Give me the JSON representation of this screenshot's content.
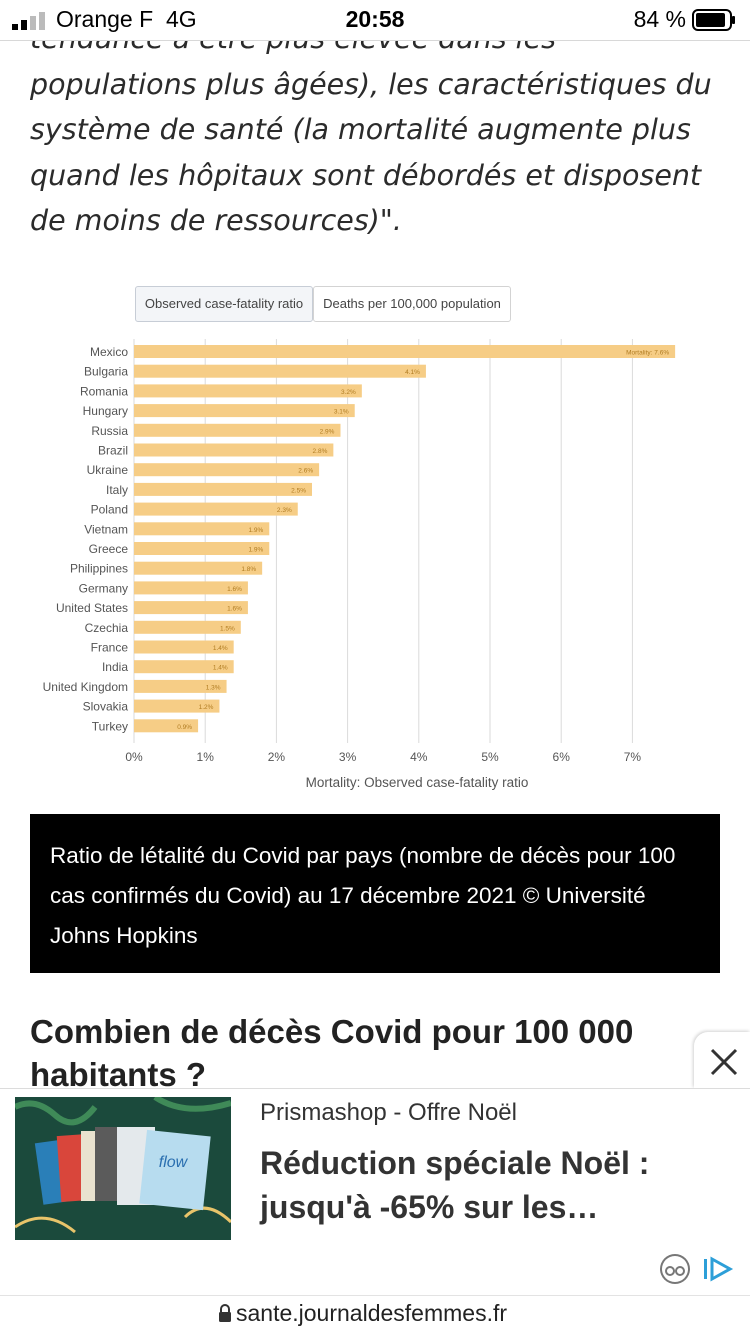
{
  "status_bar": {
    "carrier": "Orange F",
    "network": "4G",
    "time": "20:58",
    "battery": "84 %"
  },
  "article": {
    "lines": [
      "tendance à être plus élevée dans les",
      "populations plus âgées), les caractéristiques du",
      "système de santé (la mortalité augmente plus",
      "quand les hôpitaux sont débordés et disposent",
      "de moins de ressources)\"."
    ]
  },
  "chart_tabs": [
    "Observed case-fatality ratio",
    "Deaths per 100,000 population"
  ],
  "chart_data": {
    "type": "bar",
    "orientation": "horizontal",
    "categories": [
      "Mexico",
      "Bulgaria",
      "Romania",
      "Hungary",
      "Russia",
      "Brazil",
      "Ukraine",
      "Italy",
      "Poland",
      "Vietnam",
      "Greece",
      "Philippines",
      "Germany",
      "United States",
      "Czechia",
      "France",
      "India",
      "United Kingdom",
      "Slovakia",
      "Turkey"
    ],
    "values": [
      7.6,
      4.1,
      3.2,
      3.1,
      2.9,
      2.8,
      2.6,
      2.5,
      2.3,
      1.9,
      1.9,
      1.8,
      1.6,
      1.6,
      1.5,
      1.4,
      1.4,
      1.3,
      1.2,
      0.9
    ],
    "value_labels": [
      "Mortality: 7.6%",
      "4.1%",
      "3.2%",
      "3.1%",
      "2.9%",
      "2.8%",
      "2.6%",
      "2.5%",
      "2.3%",
      "1.9%",
      "1.9%",
      "1.8%",
      "1.6%",
      "1.6%",
      "1.5%",
      "1.4%",
      "1.4%",
      "1.3%",
      "1.2%",
      "0.9%"
    ],
    "xticks": [
      "0%",
      "1%",
      "2%",
      "3%",
      "4%",
      "5%",
      "6%",
      "7%"
    ],
    "xlim": [
      0,
      7.6
    ],
    "xlabel": "Mortality: Observed case-fatality ratio",
    "grid": "vertical",
    "bar_color": "#f6cd86",
    "label_color": "#b07c22"
  },
  "caption": "Ratio de létalité du Covid par pays (nombre de décès pour 100 cas confirmés du Covid) au 17 décembre 2021 © Université Johns Hopkins",
  "section_title": "Combien de décès Covid pour 100 000 habitants ?",
  "ad": {
    "source": "Prismashop - Offre Noël",
    "headline": "Réduction spéciale Noël : jusqu'à -65% sur les…",
    "close_icon": "close-icon",
    "image_colors": {
      "background": "#1b4a3c",
      "accent": "#e8c46a"
    }
  },
  "url_bar": {
    "url": "sante.journaldesfemmes.fr"
  }
}
